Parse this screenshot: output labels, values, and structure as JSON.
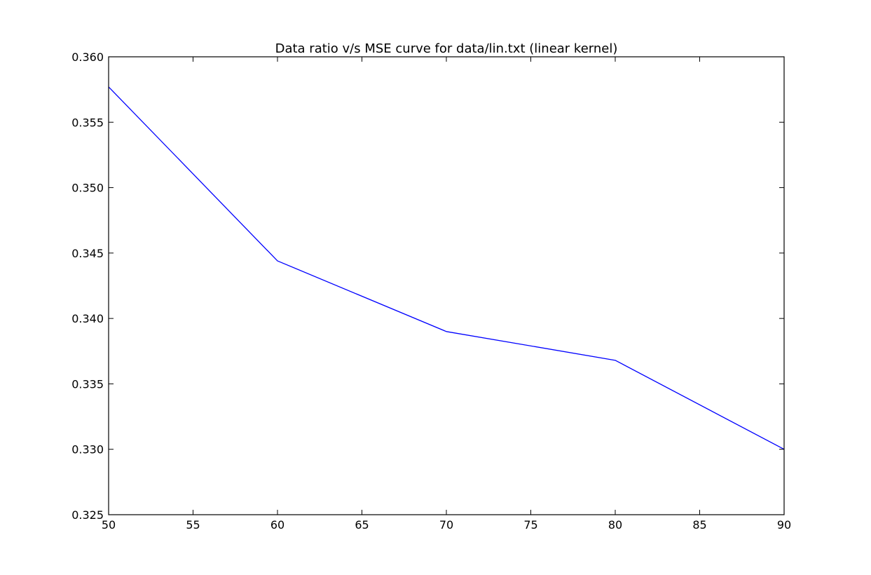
{
  "chart_data": {
    "type": "line",
    "title": "Data ratio v/s MSE curve for data/lin.txt (linear kernel)",
    "xlabel": "",
    "ylabel": "",
    "x": [
      50,
      60,
      70,
      80,
      90
    ],
    "series": [
      {
        "values": [
          0.3577,
          0.3444,
          0.339,
          0.3368,
          0.33
        ],
        "color": "#0000ff"
      }
    ],
    "xlim": [
      50,
      90
    ],
    "ylim": [
      0.325,
      0.36
    ],
    "xticks": [
      50,
      55,
      60,
      65,
      70,
      75,
      80,
      85,
      90
    ],
    "xtick_labels": [
      "50",
      "55",
      "60",
      "65",
      "70",
      "75",
      "80",
      "85",
      "90"
    ],
    "yticks": [
      0.325,
      0.33,
      0.335,
      0.34,
      0.345,
      0.35,
      0.355,
      0.36
    ],
    "ytick_labels": [
      "0.325",
      "0.330",
      "0.335",
      "0.340",
      "0.345",
      "0.350",
      "0.355",
      "0.360"
    ],
    "grid": false,
    "legend": "none"
  }
}
